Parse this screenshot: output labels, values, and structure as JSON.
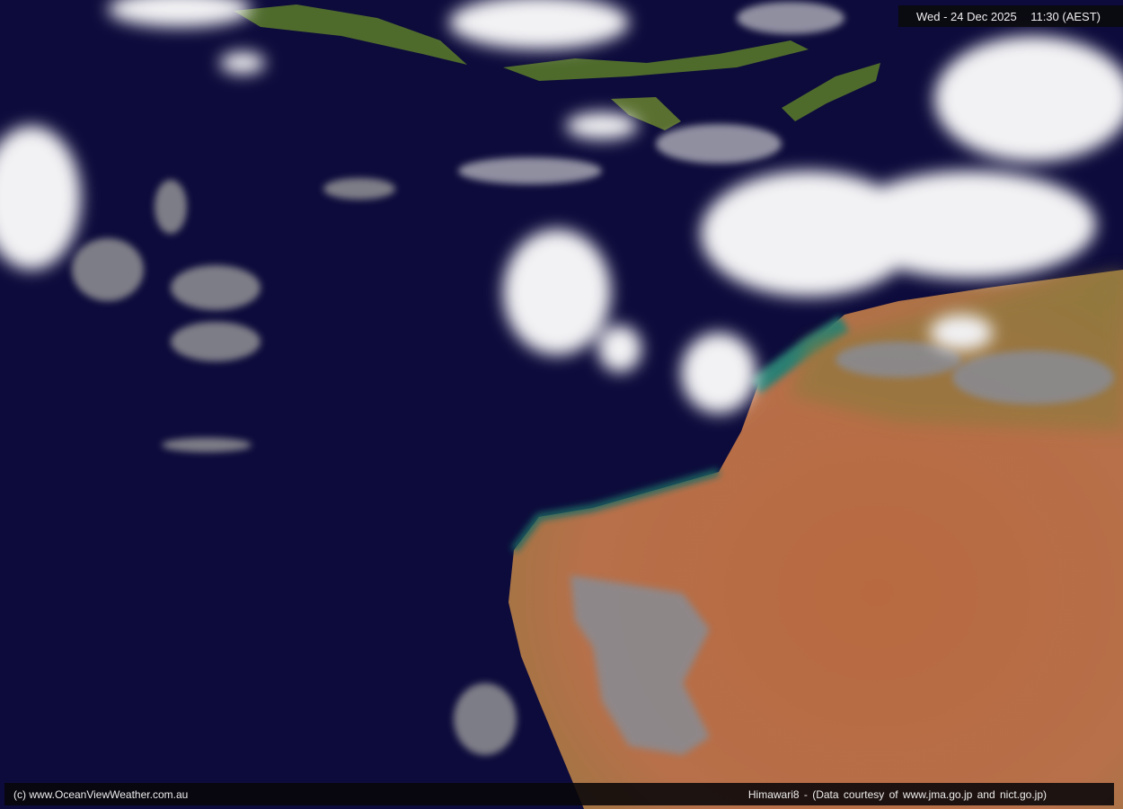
{
  "header": {
    "date": "Wed - 24 Dec 2025",
    "time": "11:30 (AEST)"
  },
  "footer": {
    "copyright": "(c) www.OceanViewWeather.com.au",
    "credit": "Himawari8  -  (Data courtesy of    www.jma.go.jp    and    nict.go.jp)"
  },
  "colors": {
    "ocean": "#0d0b3b",
    "land": "#b86a45",
    "vegetation": "#556b2f",
    "cloud": "#f2f2f2"
  }
}
